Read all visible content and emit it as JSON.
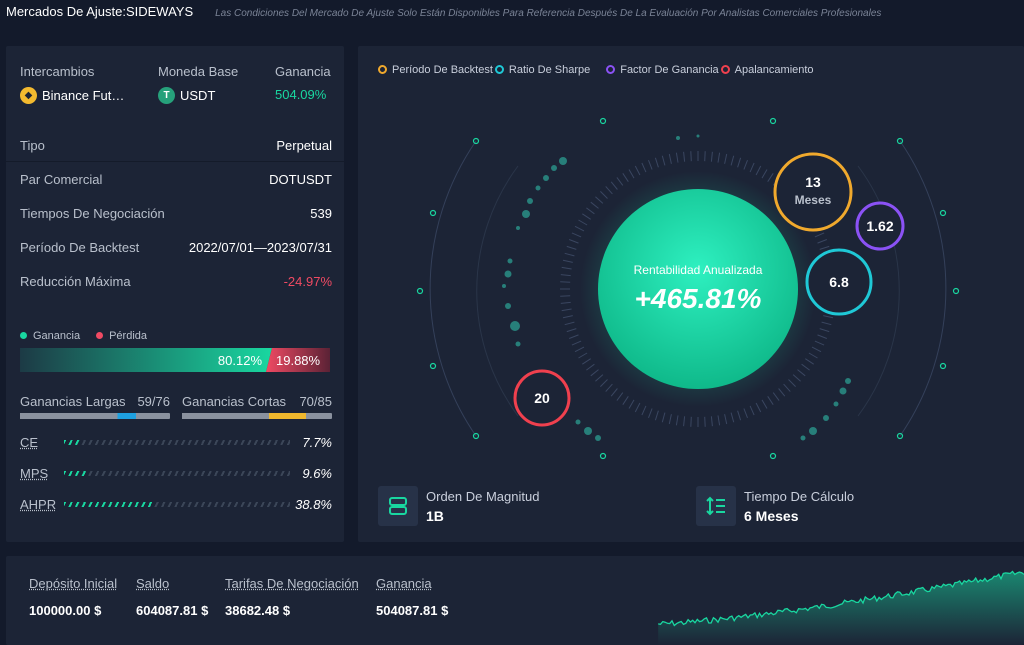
{
  "header": {
    "title": "Mercados De Ajuste:SIDEWAYS",
    "subtitle": "Las Condiciones Del Mercado De Ajuste Solo Están Disponibles Para Referencia Después De La Evaluación Por Analistas Comerciales Profesionales"
  },
  "summary": {
    "exchange_label": "Intercambios",
    "exchange_value": "Binance Fut…",
    "base_label": "Moneda Base",
    "base_value": "USDT",
    "profit_label": "Ganancia",
    "profit_value": "504.09%"
  },
  "details": [
    {
      "label": "Tipo",
      "value": "Perpetual"
    },
    {
      "label": "Par Comercial",
      "value": "DOTUSDT"
    },
    {
      "label": "Tiempos De Negociación",
      "value": "539"
    },
    {
      "label": "Período De Backtest",
      "value": "2022/07/01—2023/07/31"
    },
    {
      "label": "Reducción Máxima",
      "value": "-24.97%"
    }
  ],
  "pl": {
    "gain_label": "Ganancia",
    "loss_label": "Pérdida",
    "gain_value": "80.12%",
    "loss_value": "19.88%",
    "gain_fraction": 0.8012
  },
  "long_short": {
    "long_label": "Ganancias Largas",
    "long_value": "59/76",
    "long_fraction": 0.776,
    "short_label": "Ganancias Cortas",
    "short_value": "70/85",
    "short_fraction": 0.824
  },
  "metrics": [
    {
      "name": "CE",
      "value": "7.7%",
      "fraction": 0.077
    },
    {
      "name": "MPS",
      "value": "9.6%",
      "fraction": 0.096
    },
    {
      "name": "AHPR",
      "value": "38.8%",
      "fraction": 0.388
    }
  ],
  "center": {
    "legend": [
      {
        "label": "Período De Backtest",
        "color": "#f0a92d"
      },
      {
        "label": "Ratio De Sharpe",
        "color": "#1fc8d6"
      },
      {
        "label": "Factor De Ganancia",
        "color": "#8b52f5"
      },
      {
        "label": "Apalancamiento",
        "color": "#f0404e"
      }
    ],
    "main_label": "Rentabilidad Anualizada",
    "main_value": "+465.81%",
    "period_value": "13",
    "period_unit": "Meses",
    "profit_factor": "1.62",
    "sharpe": "6.8",
    "leverage": "20",
    "magnitude_label": "Orden De Magnitud",
    "magnitude_value": "1B",
    "calc_label": "Tiempo De Cálculo",
    "calc_value": "6 Meses"
  },
  "bottom": {
    "deposit_label": "Depósito Inicial",
    "deposit_value": "100000.00 $",
    "balance_label": "Saldo",
    "balance_value": "604087.81 $",
    "fees_label": "Tarifas De Negociación",
    "fees_value": "38682.48 $",
    "profit_label": "Ganancia",
    "profit_value": "504087.81 $"
  },
  "colors": {
    "accent_green": "#19d7a0",
    "accent_red": "#f04a63",
    "long_bar": "#1ea0e0",
    "short_bar": "#f0b72d"
  }
}
